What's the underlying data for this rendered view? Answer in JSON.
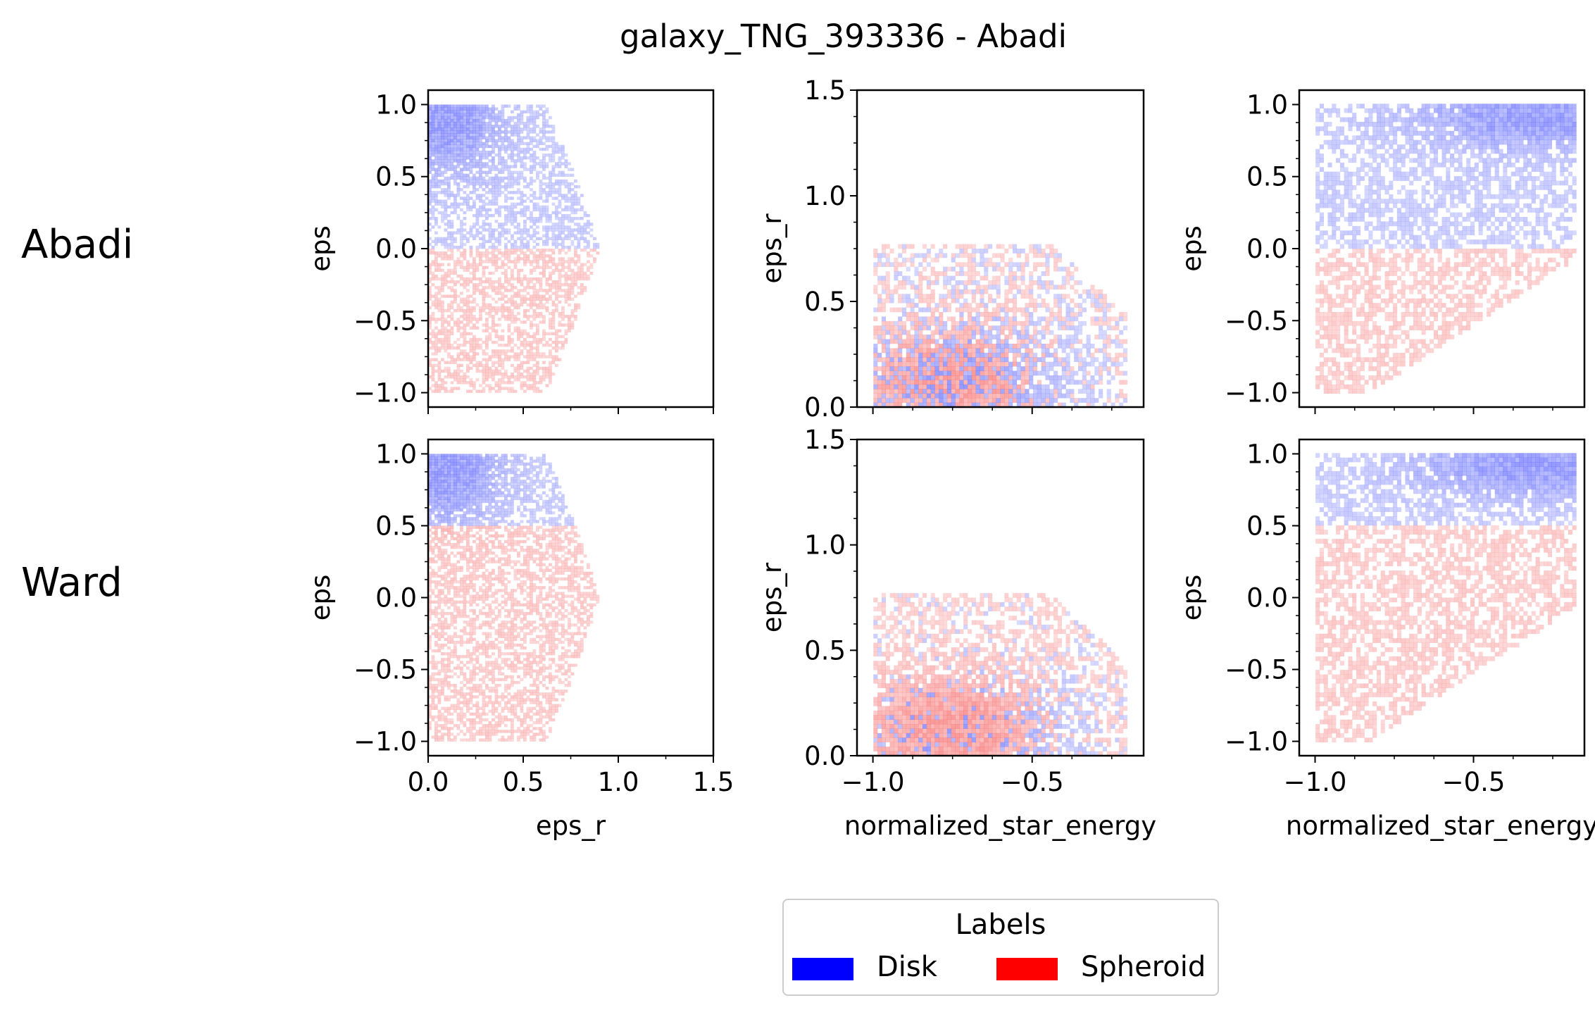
{
  "figure": {
    "title": "galaxy_TNG_393336 - Abadi",
    "row_labels": [
      "Abadi",
      "Ward"
    ]
  },
  "legend": {
    "title": "Labels",
    "entries": [
      {
        "label": "Disk",
        "color": "#0000ff"
      },
      {
        "label": "Spheroid",
        "color": "#ff0000"
      }
    ]
  },
  "chart_data": [
    {
      "type": "heatmap",
      "row": "Abadi",
      "xlabel": "",
      "ylabel": "eps",
      "xlim": [
        0,
        1.5
      ],
      "ylim": [
        -1.1,
        1.1
      ],
      "xticks": [],
      "yticks": [
        1.0,
        0.5,
        0.0,
        -0.5,
        -1.0
      ],
      "ytick_labels": [
        "1.0",
        "0.5",
        "0.0",
        "−0.5",
        "−1.0"
      ],
      "disk_region": "eps > 0",
      "spheroid_region": "eps < 0"
    },
    {
      "type": "heatmap",
      "row": "Abadi",
      "xlabel": "",
      "ylabel": "eps_r",
      "xlim": [
        -1.05,
        -0.15
      ],
      "ylim": [
        0.0,
        1.5
      ],
      "xticks": [],
      "yticks": [
        1.5,
        1.0,
        0.5,
        0.0
      ],
      "ytick_labels": [
        "1.5",
        "1.0",
        "0.5",
        "0.0"
      ],
      "disk_concentration": {
        "x": -0.4,
        "y": 0.15
      },
      "spheroid_concentration": {
        "x": -0.8,
        "y": 0.15
      }
    },
    {
      "type": "heatmap",
      "row": "Abadi",
      "xlabel": "",
      "ylabel": "eps",
      "xlim": [
        -1.05,
        -0.15
      ],
      "ylim": [
        -1.1,
        1.1
      ],
      "xticks": [],
      "yticks": [
        1.0,
        0.5,
        0.0,
        -0.5,
        -1.0
      ],
      "ytick_labels": [
        "1.0",
        "0.5",
        "0.0",
        "−0.5",
        "−1.0"
      ],
      "disk_region": "eps > 0",
      "spheroid_region": "eps < 0"
    },
    {
      "type": "heatmap",
      "row": "Ward",
      "xlabel": "eps_r",
      "ylabel": "eps",
      "xlim": [
        0,
        1.5
      ],
      "ylim": [
        -1.1,
        1.1
      ],
      "xticks": [
        0.0,
        0.5,
        1.0,
        1.5
      ],
      "xtick_labels": [
        "0.0",
        "0.5",
        "1.0",
        "1.5"
      ],
      "yticks": [
        1.0,
        0.5,
        0.0,
        -0.5,
        -1.0
      ],
      "ytick_labels": [
        "1.0",
        "0.5",
        "0.0",
        "−0.5",
        "−1.0"
      ],
      "disk_region": "eps > 0.5",
      "spheroid_region": "eps < 0.5"
    },
    {
      "type": "heatmap",
      "row": "Ward",
      "xlabel": "normalized_star_energy",
      "ylabel": "eps_r",
      "xlim": [
        -1.05,
        -0.15
      ],
      "ylim": [
        0.0,
        1.5
      ],
      "xticks": [
        -1.0,
        -0.5
      ],
      "xtick_labels": [
        "−1.0",
        "−0.5"
      ],
      "yticks": [
        1.5,
        1.0,
        0.5,
        0.0
      ],
      "ytick_labels": [
        "1.5",
        "1.0",
        "0.5",
        "0.0"
      ],
      "disk_concentration": {
        "x": -0.35,
        "y": 0.2
      },
      "spheroid_concentration": {
        "x": -0.8,
        "y": 0.1
      }
    },
    {
      "type": "heatmap",
      "row": "Ward",
      "xlabel": "normalized_star_energy",
      "ylabel": "eps",
      "xlim": [
        -1.05,
        -0.15
      ],
      "ylim": [
        -1.1,
        1.1
      ],
      "xticks": [
        -1.0,
        -0.5
      ],
      "xtick_labels": [
        "−1.0",
        "−0.5"
      ],
      "yticks": [
        1.0,
        0.5,
        0.0,
        -0.5,
        -1.0
      ],
      "ytick_labels": [
        "1.0",
        "0.5",
        "0.0",
        "−0.5",
        "−1.0"
      ],
      "disk_region": "eps > 0.5",
      "spheroid_region": "eps < 0.5"
    }
  ]
}
